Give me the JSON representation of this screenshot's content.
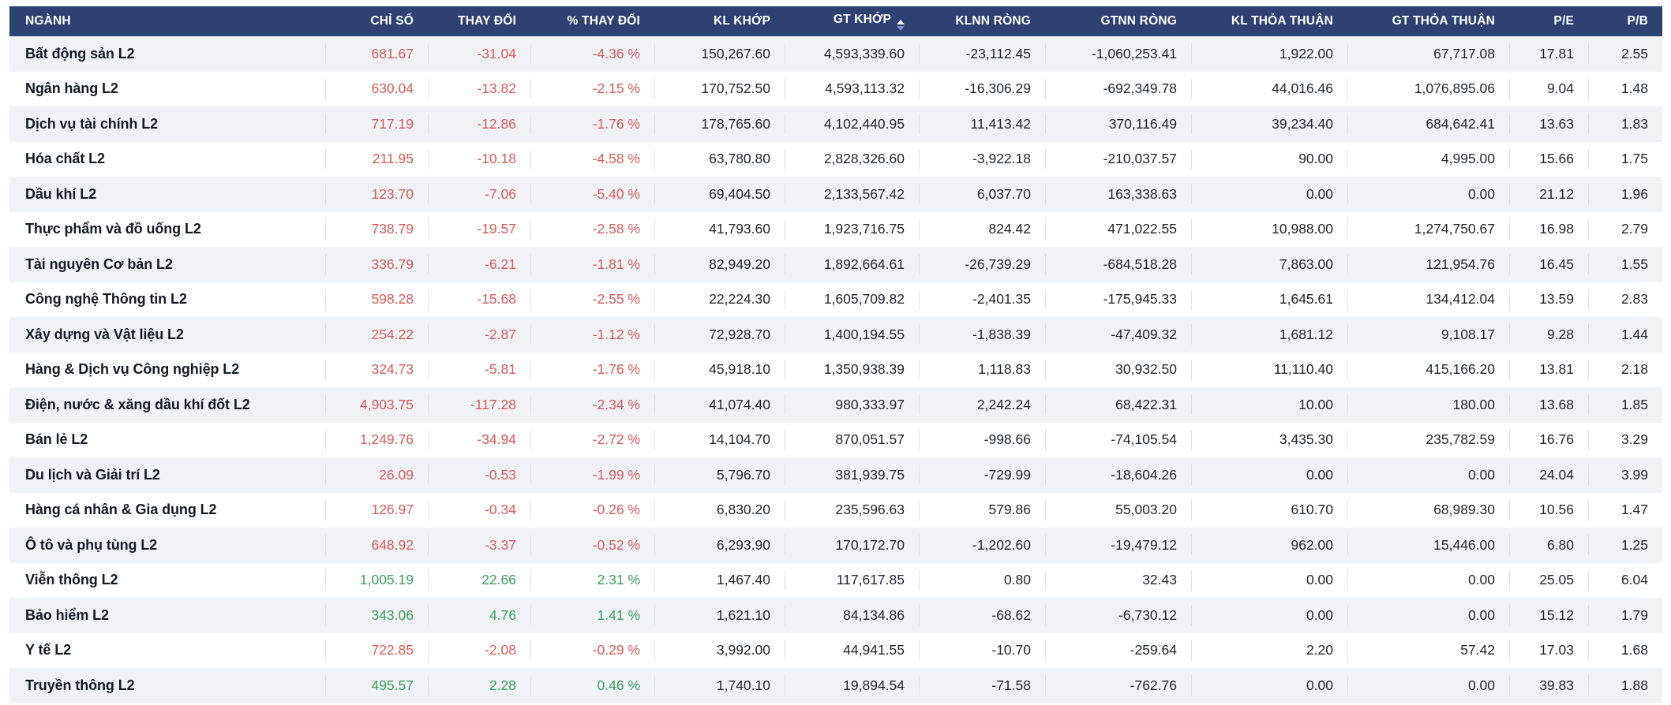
{
  "colors": {
    "header_bg": "#2d4270",
    "stripe": "#f0f2f6",
    "negative": "#d25c5c",
    "positive": "#3c9e5e",
    "sort_active": "#ffffff",
    "sort_inactive": "#7d94c4"
  },
  "table": {
    "columns": [
      {
        "key": "name",
        "label": "NGÀNH",
        "align": "left",
        "sorted": false
      },
      {
        "key": "index",
        "label": "CHỈ SỐ",
        "align": "right",
        "sorted": false
      },
      {
        "key": "change",
        "label": "THAY ĐỔI",
        "align": "right",
        "sorted": false
      },
      {
        "key": "change_pct",
        "label": "% THAY ĐỔI",
        "align": "right",
        "sorted": false
      },
      {
        "key": "matched_vol",
        "label": "KL KHỚP",
        "align": "right",
        "sorted": false
      },
      {
        "key": "matched_val",
        "label": "GT KHỚP",
        "align": "right",
        "sorted": true
      },
      {
        "key": "foreign_net_vol",
        "label": "KLNN RÒNG",
        "align": "right",
        "sorted": false
      },
      {
        "key": "foreign_net_val",
        "label": "GTNN RÒNG",
        "align": "right",
        "sorted": false
      },
      {
        "key": "putthrough_vol",
        "label": "KL THỎA THUẬN",
        "align": "right",
        "sorted": false
      },
      {
        "key": "putthrough_val",
        "label": "GT THỎA THUẬN",
        "align": "right",
        "sorted": false
      },
      {
        "key": "pe",
        "label": "P/E",
        "align": "right",
        "sorted": false
      },
      {
        "key": "pb",
        "label": "P/B",
        "align": "right",
        "sorted": false
      }
    ],
    "rows": [
      {
        "name": "Bất động sản L2",
        "trend": "down",
        "index": "681.67",
        "change": "-31.04",
        "change_pct": "-4.36 %",
        "matched_vol": "150,267.60",
        "matched_val": "4,593,339.60",
        "foreign_net_vol": "-23,112.45",
        "foreign_net_val": "-1,060,253.41",
        "putthrough_vol": "1,922.00",
        "putthrough_val": "67,717.08",
        "pe": "17.81",
        "pb": "2.55"
      },
      {
        "name": "Ngân hàng L2",
        "trend": "down",
        "index": "630.04",
        "change": "-13.82",
        "change_pct": "-2.15 %",
        "matched_vol": "170,752.50",
        "matched_val": "4,593,113.32",
        "foreign_net_vol": "-16,306.29",
        "foreign_net_val": "-692,349.78",
        "putthrough_vol": "44,016.46",
        "putthrough_val": "1,076,895.06",
        "pe": "9.04",
        "pb": "1.48"
      },
      {
        "name": "Dịch vụ tài chính L2",
        "trend": "down",
        "index": "717.19",
        "change": "-12.86",
        "change_pct": "-1.76 %",
        "matched_vol": "178,765.60",
        "matched_val": "4,102,440.95",
        "foreign_net_vol": "11,413.42",
        "foreign_net_val": "370,116.49",
        "putthrough_vol": "39,234.40",
        "putthrough_val": "684,642.41",
        "pe": "13.63",
        "pb": "1.83"
      },
      {
        "name": "Hóa chất L2",
        "trend": "down",
        "index": "211.95",
        "change": "-10.18",
        "change_pct": "-4.58 %",
        "matched_vol": "63,780.80",
        "matched_val": "2,828,326.60",
        "foreign_net_vol": "-3,922.18",
        "foreign_net_val": "-210,037.57",
        "putthrough_vol": "90.00",
        "putthrough_val": "4,995.00",
        "pe": "15.66",
        "pb": "1.75"
      },
      {
        "name": "Dầu khí L2",
        "trend": "down",
        "index": "123.70",
        "change": "-7.06",
        "change_pct": "-5.40 %",
        "matched_vol": "69,404.50",
        "matched_val": "2,133,567.42",
        "foreign_net_vol": "6,037.70",
        "foreign_net_val": "163,338.63",
        "putthrough_vol": "0.00",
        "putthrough_val": "0.00",
        "pe": "21.12",
        "pb": "1.96"
      },
      {
        "name": "Thực phẩm và đồ uống L2",
        "trend": "down",
        "index": "738.79",
        "change": "-19.57",
        "change_pct": "-2.58 %",
        "matched_vol": "41,793.60",
        "matched_val": "1,923,716.75",
        "foreign_net_vol": "824.42",
        "foreign_net_val": "471,022.55",
        "putthrough_vol": "10,988.00",
        "putthrough_val": "1,274,750.67",
        "pe": "16.98",
        "pb": "2.79"
      },
      {
        "name": "Tài nguyên Cơ bản L2",
        "trend": "down",
        "index": "336.79",
        "change": "-6.21",
        "change_pct": "-1.81 %",
        "matched_vol": "82,949.20",
        "matched_val": "1,892,664.61",
        "foreign_net_vol": "-26,739.29",
        "foreign_net_val": "-684,518.28",
        "putthrough_vol": "7,863.00",
        "putthrough_val": "121,954.76",
        "pe": "16.45",
        "pb": "1.55"
      },
      {
        "name": "Công nghệ Thông tin L2",
        "trend": "down",
        "index": "598.28",
        "change": "-15.68",
        "change_pct": "-2.55 %",
        "matched_vol": "22,224.30",
        "matched_val": "1,605,709.82",
        "foreign_net_vol": "-2,401.35",
        "foreign_net_val": "-175,945.33",
        "putthrough_vol": "1,645.61",
        "putthrough_val": "134,412.04",
        "pe": "13.59",
        "pb": "2.83"
      },
      {
        "name": "Xây dựng và Vật liệu L2",
        "trend": "down",
        "index": "254.22",
        "change": "-2.87",
        "change_pct": "-1.12 %",
        "matched_vol": "72,928.70",
        "matched_val": "1,400,194.55",
        "foreign_net_vol": "-1,838.39",
        "foreign_net_val": "-47,409.32",
        "putthrough_vol": "1,681.12",
        "putthrough_val": "9,108.17",
        "pe": "9.28",
        "pb": "1.44"
      },
      {
        "name": "Hàng & Dịch vụ Công nghiệp L2",
        "trend": "down",
        "index": "324.73",
        "change": "-5.81",
        "change_pct": "-1.76 %",
        "matched_vol": "45,918.10",
        "matched_val": "1,350,938.39",
        "foreign_net_vol": "1,118.83",
        "foreign_net_val": "30,932.50",
        "putthrough_vol": "11,110.40",
        "putthrough_val": "415,166.20",
        "pe": "13.81",
        "pb": "2.18"
      },
      {
        "name": "Điện, nước & xăng dầu khí đốt L2",
        "trend": "down",
        "index": "4,903.75",
        "change": "-117.28",
        "change_pct": "-2.34 %",
        "matched_vol": "41,074.40",
        "matched_val": "980,333.97",
        "foreign_net_vol": "2,242.24",
        "foreign_net_val": "68,422.31",
        "putthrough_vol": "10.00",
        "putthrough_val": "180.00",
        "pe": "13.68",
        "pb": "1.85"
      },
      {
        "name": "Bán lẻ L2",
        "trend": "down",
        "index": "1,249.76",
        "change": "-34.94",
        "change_pct": "-2.72 %",
        "matched_vol": "14,104.70",
        "matched_val": "870,051.57",
        "foreign_net_vol": "-998.66",
        "foreign_net_val": "-74,105.54",
        "putthrough_vol": "3,435.30",
        "putthrough_val": "235,782.59",
        "pe": "16.76",
        "pb": "3.29"
      },
      {
        "name": "Du lịch và Giải trí L2",
        "trend": "down",
        "index": "26.09",
        "change": "-0.53",
        "change_pct": "-1.99 %",
        "matched_vol": "5,796.70",
        "matched_val": "381,939.75",
        "foreign_net_vol": "-729.99",
        "foreign_net_val": "-18,604.26",
        "putthrough_vol": "0.00",
        "putthrough_val": "0.00",
        "pe": "24.04",
        "pb": "3.99"
      },
      {
        "name": "Hàng cá nhân & Gia dụng L2",
        "trend": "down",
        "index": "126.97",
        "change": "-0.34",
        "change_pct": "-0.26 %",
        "matched_vol": "6,830.20",
        "matched_val": "235,596.63",
        "foreign_net_vol": "579.86",
        "foreign_net_val": "55,003.20",
        "putthrough_vol": "610.70",
        "putthrough_val": "68,989.30",
        "pe": "10.56",
        "pb": "1.47"
      },
      {
        "name": "Ô tô và phụ tùng L2",
        "trend": "down",
        "index": "648.92",
        "change": "-3.37",
        "change_pct": "-0.52 %",
        "matched_vol": "6,293.90",
        "matched_val": "170,172.70",
        "foreign_net_vol": "-1,202.60",
        "foreign_net_val": "-19,479.12",
        "putthrough_vol": "962.00",
        "putthrough_val": "15,446.00",
        "pe": "6.80",
        "pb": "1.25"
      },
      {
        "name": "Viễn thông L2",
        "trend": "up",
        "index": "1,005.19",
        "change": "22.66",
        "change_pct": "2.31 %",
        "matched_vol": "1,467.40",
        "matched_val": "117,617.85",
        "foreign_net_vol": "0.80",
        "foreign_net_val": "32.43",
        "putthrough_vol": "0.00",
        "putthrough_val": "0.00",
        "pe": "25.05",
        "pb": "6.04"
      },
      {
        "name": "Bảo hiểm L2",
        "trend": "up",
        "index": "343.06",
        "change": "4.76",
        "change_pct": "1.41 %",
        "matched_vol": "1,621.10",
        "matched_val": "84,134.86",
        "foreign_net_vol": "-68.62",
        "foreign_net_val": "-6,730.12",
        "putthrough_vol": "0.00",
        "putthrough_val": "0.00",
        "pe": "15.12",
        "pb": "1.79"
      },
      {
        "name": "Y tế L2",
        "trend": "down",
        "index": "722.85",
        "change": "-2.08",
        "change_pct": "-0.29 %",
        "matched_vol": "3,992.00",
        "matched_val": "44,941.55",
        "foreign_net_vol": "-10.70",
        "foreign_net_val": "-259.64",
        "putthrough_vol": "2.20",
        "putthrough_val": "57.42",
        "pe": "17.03",
        "pb": "1.68"
      },
      {
        "name": "Truyền thông L2",
        "trend": "up",
        "index": "495.57",
        "change": "2.28",
        "change_pct": "0.46 %",
        "matched_vol": "1,740.10",
        "matched_val": "19,894.54",
        "foreign_net_vol": "-71.58",
        "foreign_net_val": "-762.76",
        "putthrough_vol": "0.00",
        "putthrough_val": "0.00",
        "pe": "39.83",
        "pb": "1.88"
      }
    ]
  }
}
